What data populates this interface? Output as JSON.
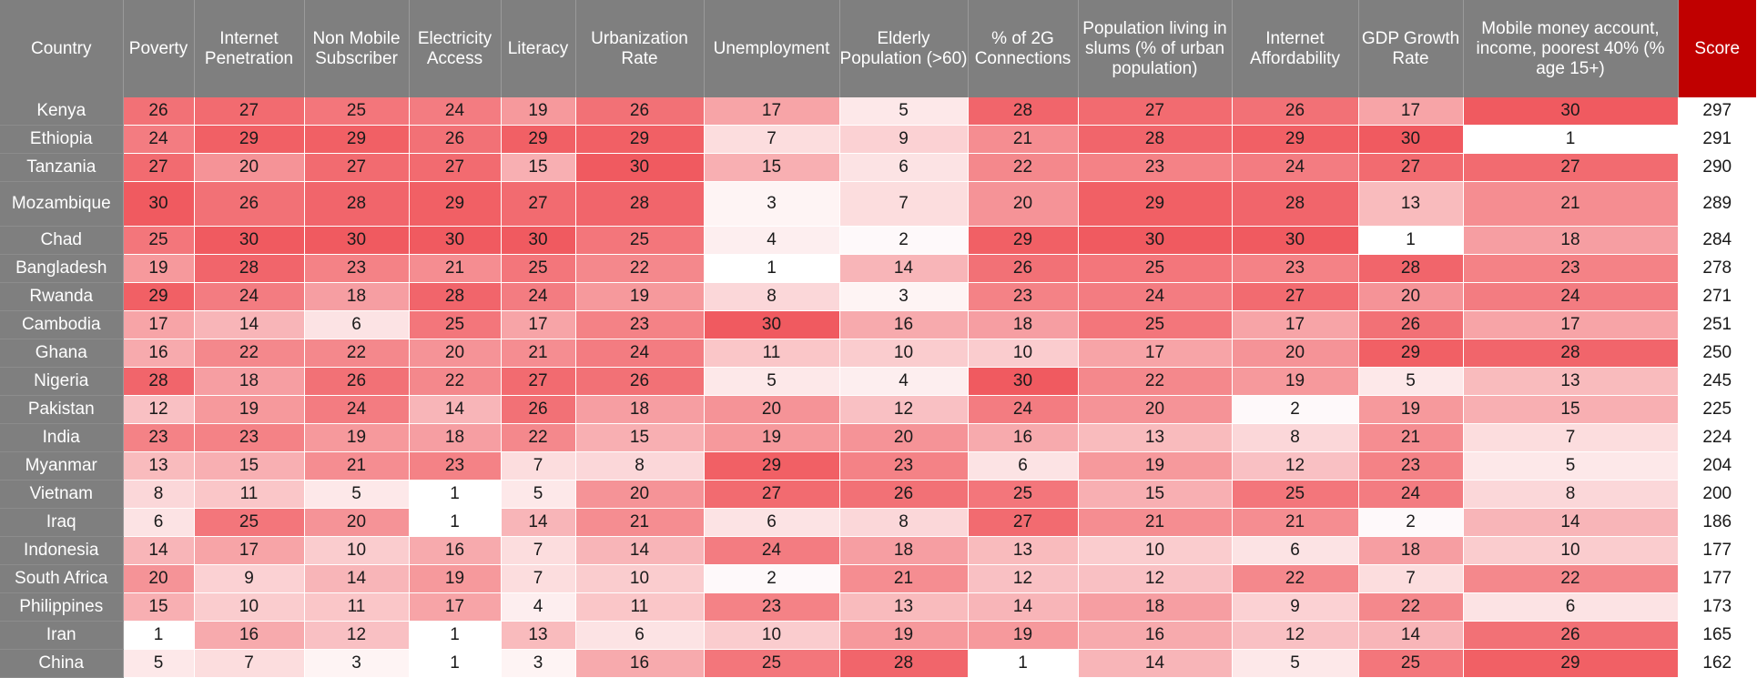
{
  "chart_data": {
    "type": "heatmap",
    "columns": [
      "Country",
      "Poverty",
      "Internet Penetration",
      "Non Mobile Subscriber",
      "Electricity Access",
      "Literacy",
      "Urbanization Rate",
      "Unemployment",
      "Elderly Population (>60)",
      "% of 2G Connections",
      "Population living in slums (% of urban population)",
      "Internet Affordability",
      "GDP Growth Rate",
      "Mobile money account, income, poorest 40% (% age 15+)",
      "Score"
    ],
    "rows": [
      {
        "country": "Kenya",
        "values": [
          26,
          27,
          25,
          24,
          19,
          26,
          17,
          5,
          28,
          27,
          26,
          17,
          30
        ],
        "score": 297
      },
      {
        "country": "Ethiopia",
        "values": [
          24,
          29,
          29,
          26,
          29,
          29,
          7,
          9,
          21,
          28,
          29,
          30,
          1
        ],
        "score": 291
      },
      {
        "country": "Tanzania",
        "values": [
          27,
          20,
          27,
          27,
          15,
          30,
          15,
          6,
          22,
          23,
          24,
          27,
          27
        ],
        "score": 290
      },
      {
        "country": "Mozambique",
        "values": [
          30,
          26,
          28,
          29,
          27,
          28,
          3,
          7,
          20,
          29,
          28,
          13,
          21
        ],
        "score": 289
      },
      {
        "country": "Chad",
        "values": [
          25,
          30,
          30,
          30,
          30,
          25,
          4,
          2,
          29,
          30,
          30,
          1,
          18
        ],
        "score": 284
      },
      {
        "country": "Bangladesh",
        "values": [
          19,
          28,
          23,
          21,
          25,
          22,
          1,
          14,
          26,
          25,
          23,
          28,
          23
        ],
        "score": 278
      },
      {
        "country": "Rwanda",
        "values": [
          29,
          24,
          18,
          28,
          24,
          19,
          8,
          3,
          23,
          24,
          27,
          20,
          24
        ],
        "score": 271
      },
      {
        "country": "Cambodia",
        "values": [
          17,
          14,
          6,
          25,
          17,
          23,
          30,
          16,
          18,
          25,
          17,
          26,
          17
        ],
        "score": 251
      },
      {
        "country": "Ghana",
        "values": [
          16,
          22,
          22,
          20,
          21,
          24,
          11,
          10,
          10,
          17,
          20,
          29,
          28
        ],
        "score": 250
      },
      {
        "country": "Nigeria",
        "values": [
          28,
          18,
          26,
          22,
          27,
          26,
          5,
          4,
          30,
          22,
          19,
          5,
          13
        ],
        "score": 245
      },
      {
        "country": "Pakistan",
        "values": [
          12,
          19,
          24,
          14,
          26,
          18,
          20,
          12,
          24,
          20,
          2,
          19,
          15
        ],
        "score": 225
      },
      {
        "country": "India",
        "values": [
          23,
          23,
          19,
          18,
          22,
          15,
          19,
          20,
          16,
          13,
          8,
          21,
          7
        ],
        "score": 224
      },
      {
        "country": "Myanmar",
        "values": [
          13,
          15,
          21,
          23,
          7,
          8,
          29,
          23,
          6,
          19,
          12,
          23,
          5
        ],
        "score": 204
      },
      {
        "country": "Vietnam",
        "values": [
          8,
          11,
          5,
          1,
          5,
          20,
          27,
          26,
          25,
          15,
          25,
          24,
          8
        ],
        "score": 200
      },
      {
        "country": "Iraq",
        "values": [
          6,
          25,
          20,
          1,
          14,
          21,
          6,
          8,
          27,
          21,
          21,
          2,
          14
        ],
        "score": 186
      },
      {
        "country": "Indonesia",
        "values": [
          14,
          17,
          10,
          16,
          7,
          14,
          24,
          18,
          13,
          10,
          6,
          18,
          10
        ],
        "score": 177
      },
      {
        "country": "South Africa",
        "values": [
          20,
          9,
          14,
          19,
          7,
          10,
          2,
          21,
          12,
          12,
          22,
          7,
          22
        ],
        "score": 177
      },
      {
        "country": "Philippines",
        "values": [
          15,
          10,
          11,
          17,
          4,
          11,
          23,
          13,
          14,
          18,
          9,
          22,
          6
        ],
        "score": 173
      },
      {
        "country": "Iran",
        "values": [
          1,
          16,
          12,
          1,
          13,
          6,
          10,
          19,
          19,
          16,
          12,
          14,
          26
        ],
        "score": 165
      },
      {
        "country": "China",
        "values": [
          5,
          7,
          3,
          1,
          3,
          16,
          25,
          28,
          1,
          14,
          5,
          25,
          29
        ],
        "score": 162
      }
    ],
    "color_low": "#ffffff",
    "color_high": "#f05a60",
    "header_color": "#7f7f7f",
    "score_header_color": "#c00000",
    "value_range": [
      1,
      30
    ]
  }
}
